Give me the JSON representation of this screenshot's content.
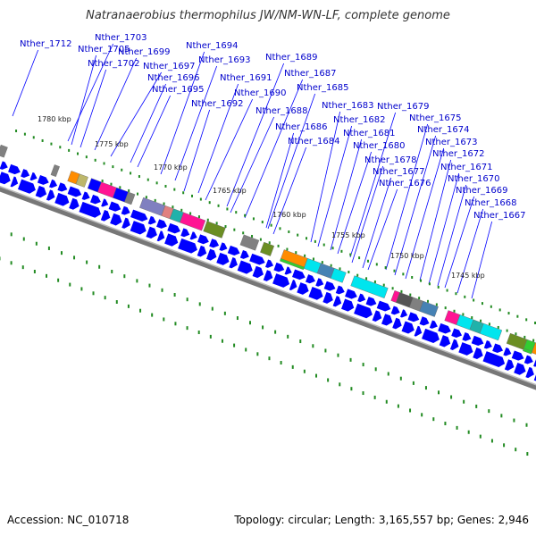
{
  "title": "Natranaerobius thermophilus JW/NM-WN-LF, complete genome",
  "footer": {
    "accession": "Accession: NC_010718",
    "summary": "Topology: circular; Length: 3,165,557 bp; Genes: 2,946"
  },
  "colors": {
    "backbone": "#8c8c8c",
    "cds": "#0000ff",
    "label": "#0000cc",
    "ticks": "#228b22",
    "leader": "#0000ff"
  },
  "kbp_ticks": [
    "1780 kbp",
    "1775 kbp",
    "1770 kbp",
    "1765 kbp",
    "1760 kbp",
    "1755 kbp",
    "1750 kbp",
    "1745 kbp"
  ],
  "gene_labels": [
    "Nther_1712",
    "Nther_1703",
    "Nther_1705",
    "Nther_1702",
    "Nther_1699",
    "Nther_1697",
    "Nther_1696",
    "Nther_1695",
    "Nther_1694",
    "Nther_1693",
    "Nther_1692",
    "Nther_1691",
    "Nther_1690",
    "Nther_1689",
    "Nther_1688",
    "Nther_1687",
    "Nther_1686",
    "Nther_1685",
    "Nther_1684",
    "Nther_1683",
    "Nther_1682",
    "Nther_1681",
    "Nther_1680",
    "Nther_1679",
    "Nther_1678",
    "Nther_1677",
    "Nther_1676",
    "Nther_1675",
    "Nther_1674",
    "Nther_1673",
    "Nther_1672",
    "Nther_1671",
    "Nther_1670",
    "Nther_1669",
    "Nther_1668",
    "Nther_1667"
  ],
  "feature_colors": {
    "orange": "#ff8c00",
    "khaki": "#bdb76b",
    "magenta": "#ff1493",
    "gray": "#808080",
    "slate": "#8080c0",
    "salmon": "#e08080",
    "teal": "#20b2aa",
    "olive": "#6b8e23",
    "cyan": "#00e5ee",
    "steel": "#4682b4",
    "green": "#32cd32",
    "darkgray": "#555555"
  }
}
